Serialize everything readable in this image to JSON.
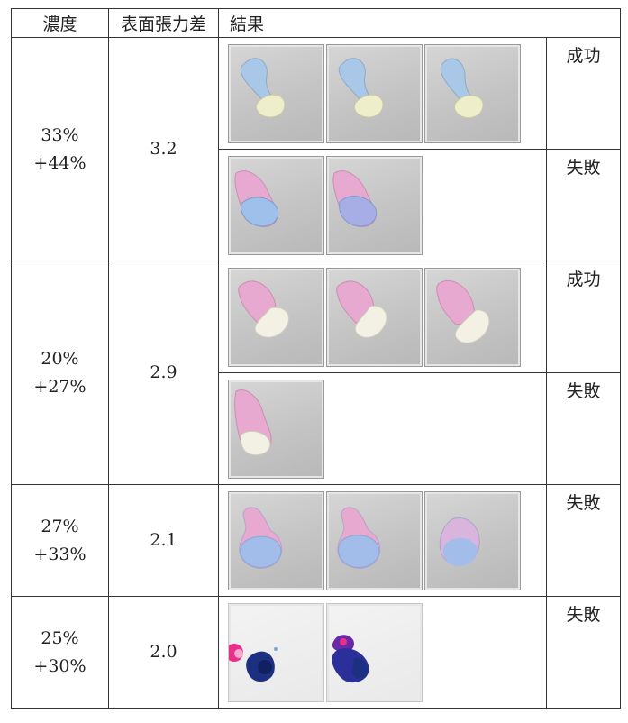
{
  "headers": {
    "concentration": "濃度",
    "surface_tension_diff": "表面張力差",
    "result": "結果"
  },
  "rows": [
    {
      "concentration": [
        "33%",
        "+44%"
      ],
      "diff": "3.2",
      "results": [
        {
          "label": "成功",
          "photos": 3,
          "drop": "blue-yellow"
        },
        {
          "label": "失敗",
          "photos": 2,
          "drop": "pink-blue"
        }
      ]
    },
    {
      "concentration": [
        "20%",
        "+27%"
      ],
      "diff": "2.9",
      "results": [
        {
          "label": "成功",
          "photos": 3,
          "drop": "pink-cream"
        },
        {
          "label": "失敗",
          "photos": 1,
          "drop": "pink-cream-flat"
        }
      ]
    },
    {
      "concentration": [
        "27%",
        "+33%"
      ],
      "diff": "2.1",
      "results": [
        {
          "label": "失敗",
          "photos": 3,
          "drop": "pink-blue-round"
        }
      ]
    },
    {
      "concentration": [
        "25%",
        "+30%"
      ],
      "diff": "2.0",
      "results": [
        {
          "label": "失敗",
          "photos": 2,
          "drop": "dark-blue"
        }
      ]
    }
  ],
  "colors": {
    "blue": "#a9c8e8",
    "yellow": "#eeeecb",
    "pink": "#e7a9cf",
    "cream": "#f2f1e4",
    "navy": "#1c2f80",
    "magenta": "#e8308a"
  }
}
